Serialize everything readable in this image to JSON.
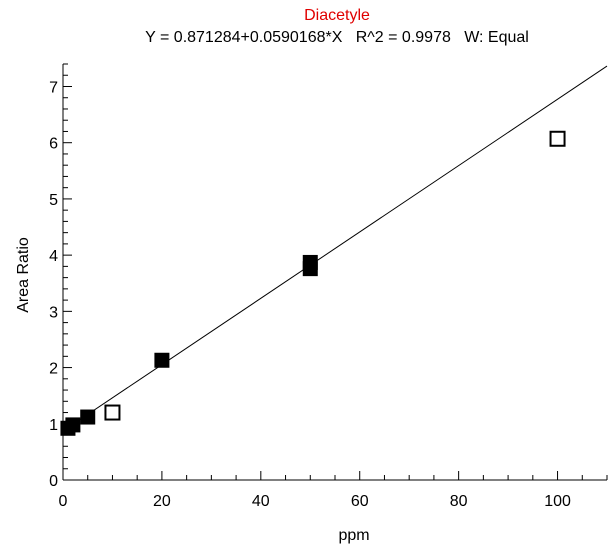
{
  "chart_data": {
    "type": "scatter",
    "title": "Diacetyle",
    "subtitle": "Y = 0.871284+0.0590168*X   R^2 = 0.9978   W: Equal",
    "xlabel": "ppm",
    "ylabel": "Area Ratio",
    "xlim": [
      0,
      110
    ],
    "ylim": [
      0,
      7.4
    ],
    "x_ticks": [
      0,
      20,
      40,
      60,
      80,
      100
    ],
    "y_ticks": [
      0,
      1,
      2,
      3,
      4,
      5,
      6,
      7
    ],
    "grid": false,
    "colors": {
      "title": "#e00000",
      "marks": "#000000",
      "background": "#ffffff"
    },
    "fit": {
      "intercept": 0.871284,
      "slope": 0.0590168,
      "r_squared": 0.9978
    },
    "series": [
      {
        "marker": "filled-square",
        "points": [
          {
            "x": 1,
            "y": 0.92
          },
          {
            "x": 2,
            "y": 0.98
          },
          {
            "x": 5,
            "y": 1.12
          },
          {
            "x": 20,
            "y": 2.13
          },
          {
            "x": 50,
            "y": 3.87
          },
          {
            "x": 50,
            "y": 3.76
          }
        ]
      },
      {
        "marker": "open-square",
        "points": [
          {
            "x": 10,
            "y": 1.2
          },
          {
            "x": 100,
            "y": 6.07
          }
        ]
      }
    ]
  }
}
